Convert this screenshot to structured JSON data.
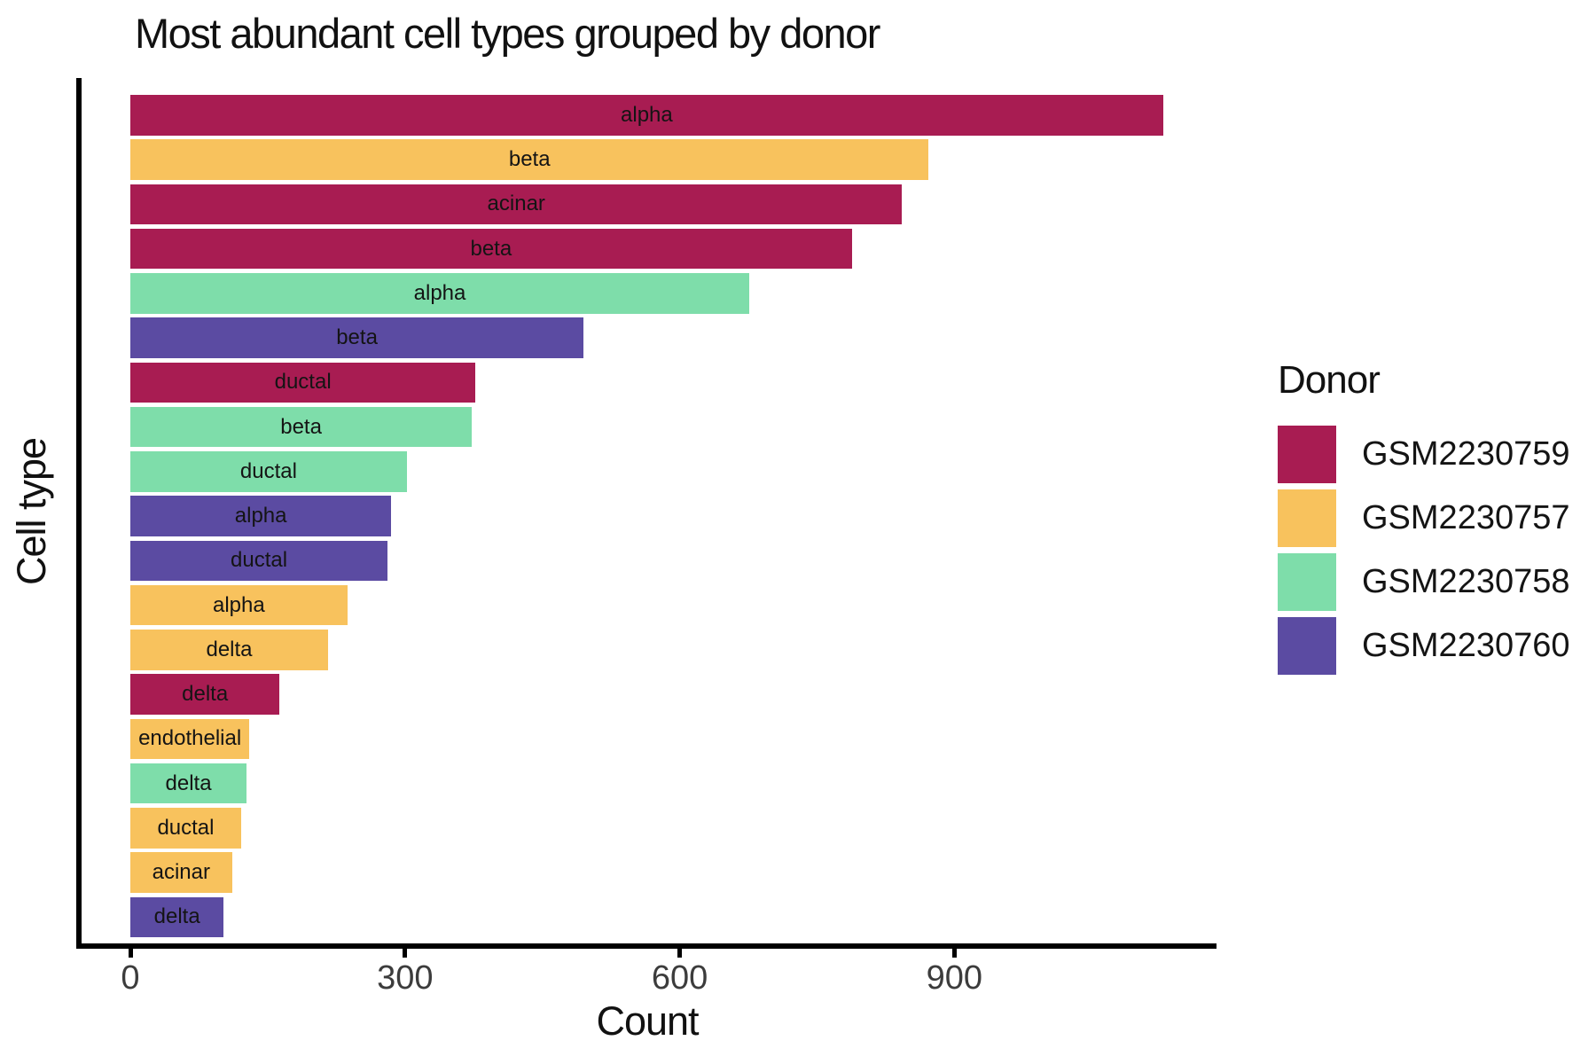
{
  "title": "Most abundant cell types grouped by donor",
  "x_axis": {
    "label": "Count",
    "ticks": [
      0,
      300,
      600,
      900
    ]
  },
  "y_axis": {
    "label": "Cell type"
  },
  "legend": {
    "title": "Donor",
    "items": [
      {
        "label": "GSM2230759",
        "color": "#a81c52"
      },
      {
        "label": "GSM2230757",
        "color": "#f8c25d"
      },
      {
        "label": "GSM2230758",
        "color": "#7eddaa"
      },
      {
        "label": "GSM2230760",
        "color": "#5b4ba2"
      }
    ]
  },
  "chart_data": {
    "type": "bar",
    "orientation": "horizontal",
    "title": "Most abundant cell types grouped by donor",
    "xlabel": "Count",
    "ylabel": "Cell type",
    "xlim": [
      0,
      1187
    ],
    "x_ticks": [
      0,
      300,
      600,
      900
    ],
    "grid": false,
    "legend_position": "right",
    "legend_title": "Donor",
    "donor_colors": {
      "GSM2230759": "#a81c52",
      "GSM2230757": "#f8c25d",
      "GSM2230758": "#7eddaa",
      "GSM2230760": "#5b4ba2"
    },
    "bars": [
      {
        "cell_type": "alpha",
        "donor": "GSM2230759",
        "count": 1128
      },
      {
        "cell_type": "beta",
        "donor": "GSM2230757",
        "count": 872
      },
      {
        "cell_type": "acinar",
        "donor": "GSM2230759",
        "count": 843
      },
      {
        "cell_type": "beta",
        "donor": "GSM2230759",
        "count": 788
      },
      {
        "cell_type": "alpha",
        "donor": "GSM2230758",
        "count": 676
      },
      {
        "cell_type": "beta",
        "donor": "GSM2230760",
        "count": 495
      },
      {
        "cell_type": "ductal",
        "donor": "GSM2230759",
        "count": 377
      },
      {
        "cell_type": "beta",
        "donor": "GSM2230758",
        "count": 373
      },
      {
        "cell_type": "ductal",
        "donor": "GSM2230758",
        "count": 302
      },
      {
        "cell_type": "alpha",
        "donor": "GSM2230760",
        "count": 285
      },
      {
        "cell_type": "ductal",
        "donor": "GSM2230760",
        "count": 281
      },
      {
        "cell_type": "alpha",
        "donor": "GSM2230757",
        "count": 237
      },
      {
        "cell_type": "delta",
        "donor": "GSM2230757",
        "count": 216
      },
      {
        "cell_type": "delta",
        "donor": "GSM2230759",
        "count": 163
      },
      {
        "cell_type": "endothelial",
        "donor": "GSM2230757",
        "count": 130
      },
      {
        "cell_type": "delta",
        "donor": "GSM2230758",
        "count": 127
      },
      {
        "cell_type": "ductal",
        "donor": "GSM2230757",
        "count": 121
      },
      {
        "cell_type": "acinar",
        "donor": "GSM2230757",
        "count": 111
      },
      {
        "cell_type": "delta",
        "donor": "GSM2230760",
        "count": 102
      }
    ]
  }
}
